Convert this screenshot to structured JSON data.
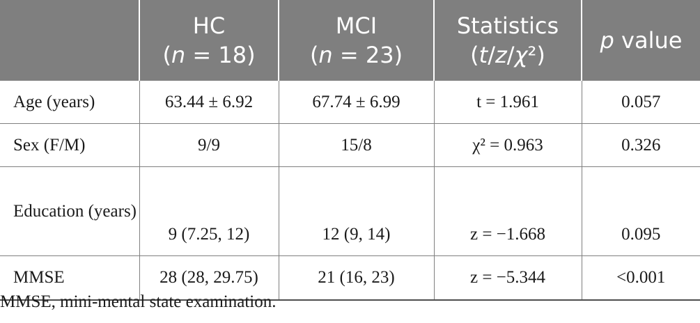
{
  "header": {
    "col0": "",
    "hc_line1": "HC",
    "hc_line2": "(n = 18)",
    "mci_line1": "MCI",
    "mci_line2": "(n = 23)",
    "stats_line1": "Statistics",
    "stats_line2": "(t/z/χ²)",
    "p_label": "p value"
  },
  "rows": [
    {
      "label": "Age (years)",
      "hc": "63.44 ± 6.92",
      "mci": "67.74 ± 6.99",
      "stat": "t = 1.961",
      "p": "0.057"
    },
    {
      "label": "Sex (F/M)",
      "hc": "9/9",
      "mci": "15/8",
      "stat": "χ² = 0.963",
      "p": "0.326"
    },
    {
      "label": "Education (years)",
      "hc": "9 (7.25, 12)",
      "mci": "12 (9, 14)",
      "stat": "z = −1.668",
      "p": "0.095"
    },
    {
      "label": "MMSE",
      "hc": "28 (28, 29.75)",
      "mci": "21 (16, 23)",
      "stat": "z = −5.344",
      "p": "<0.001"
    }
  ],
  "footnote": "MMSE, mini-mental state examination."
}
